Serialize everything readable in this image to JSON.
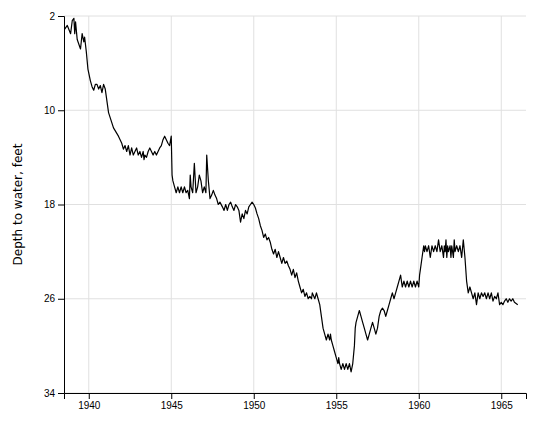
{
  "chart_data": {
    "type": "line",
    "ylabel": "Depth to water, feet",
    "xlim": [
      1938.5,
      1966.5
    ],
    "ylim": [
      34,
      2
    ],
    "xticks": [
      1940,
      1945,
      1950,
      1955,
      1960,
      1965
    ],
    "yticks": [
      2,
      10,
      18,
      26,
      34
    ],
    "grid": true,
    "color": "#000000",
    "x": [
      1938.5,
      1938.7,
      1938.9,
      1939.0,
      1939.1,
      1939.15,
      1939.2,
      1939.3,
      1939.5,
      1939.6,
      1939.7,
      1939.75,
      1939.85,
      1939.95,
      1940.1,
      1940.2,
      1940.3,
      1940.4,
      1940.5,
      1940.6,
      1940.7,
      1940.8,
      1940.9,
      1941.0,
      1941.2,
      1941.5,
      1941.8,
      1942.0,
      1942.1,
      1942.2,
      1942.3,
      1942.4,
      1942.5,
      1942.6,
      1942.7,
      1942.8,
      1942.9,
      1943.0,
      1943.1,
      1943.2,
      1943.3,
      1943.35,
      1943.4,
      1943.5,
      1943.6,
      1943.7,
      1943.8,
      1943.9,
      1944.0,
      1944.1,
      1944.2,
      1944.3,
      1944.4,
      1944.5,
      1944.6,
      1944.7,
      1944.8,
      1944.9,
      1945.0,
      1945.05,
      1945.1,
      1945.2,
      1945.3,
      1945.4,
      1945.5,
      1945.6,
      1945.7,
      1945.8,
      1945.9,
      1946.0,
      1946.1,
      1946.15,
      1946.2,
      1946.3,
      1946.4,
      1946.5,
      1946.6,
      1946.7,
      1946.8,
      1946.9,
      1947.0,
      1947.1,
      1947.15,
      1947.25,
      1947.35,
      1947.45,
      1947.55,
      1947.65,
      1947.75,
      1947.85,
      1947.95,
      1948.1,
      1948.2,
      1948.3,
      1948.4,
      1948.5,
      1948.6,
      1948.7,
      1948.8,
      1948.9,
      1949.0,
      1949.1,
      1949.2,
      1949.3,
      1949.4,
      1949.5,
      1949.6,
      1949.7,
      1949.8,
      1949.9,
      1950.0,
      1950.1,
      1950.2,
      1950.3,
      1950.35,
      1950.4,
      1950.5,
      1950.6,
      1950.7,
      1950.8,
      1950.9,
      1951.0,
      1951.1,
      1951.2,
      1951.3,
      1951.4,
      1951.5,
      1951.6,
      1951.7,
      1951.8,
      1951.9,
      1952.0,
      1952.1,
      1952.2,
      1952.3,
      1952.4,
      1952.5,
      1952.6,
      1952.7,
      1952.8,
      1952.9,
      1953.0,
      1953.1,
      1953.2,
      1953.3,
      1953.4,
      1953.5,
      1953.55,
      1953.7,
      1953.8,
      1953.9,
      1954.0,
      1954.1,
      1954.2,
      1954.3,
      1954.4,
      1954.5,
      1954.6,
      1954.65,
      1954.7,
      1954.8,
      1954.9,
      1955.0,
      1955.1,
      1955.15,
      1955.2,
      1955.3,
      1955.4,
      1955.5,
      1955.6,
      1955.7,
      1955.8,
      1955.9,
      1956.0,
      1956.1,
      1956.15,
      1956.2,
      1956.3,
      1956.4,
      1956.5,
      1956.6,
      1956.7,
      1956.8,
      1956.9,
      1957.0,
      1957.1,
      1957.2,
      1957.3,
      1957.4,
      1957.5,
      1957.6,
      1957.7,
      1957.8,
      1957.9,
      1958.0,
      1958.1,
      1958.2,
      1958.3,
      1958.4,
      1958.5,
      1958.6,
      1958.7,
      1958.8,
      1958.9,
      1959.0,
      1959.1,
      1959.2,
      1959.3,
      1959.4,
      1959.5,
      1959.6,
      1959.7,
      1959.8,
      1959.9,
      1960.0,
      1960.05,
      1960.1,
      1960.2,
      1960.3,
      1960.35,
      1960.4,
      1960.5,
      1960.6,
      1960.7,
      1960.8,
      1960.9,
      1961.0,
      1961.1,
      1961.2,
      1961.3,
      1961.4,
      1961.5,
      1961.55,
      1961.6,
      1961.65,
      1961.7,
      1961.75,
      1961.8,
      1961.9,
      1961.95,
      1962.0,
      1962.1,
      1962.15,
      1962.2,
      1962.3,
      1962.4,
      1962.5,
      1962.6,
      1962.7,
      1962.8,
      1962.9,
      1963.0,
      1963.1,
      1963.2,
      1963.3,
      1963.4,
      1963.5,
      1963.6,
      1963.7,
      1963.8,
      1963.9,
      1964.0,
      1964.1,
      1964.2,
      1964.3,
      1964.4,
      1964.5,
      1964.6,
      1964.7,
      1964.8,
      1964.85,
      1964.9,
      1965.0,
      1965.1,
      1965.2,
      1965.3,
      1965.4,
      1965.5,
      1965.6,
      1965.7,
      1965.8,
      1966.0
    ],
    "values": [
      3.2,
      2.8,
      3.5,
      2.4,
      2.2,
      3.5,
      2.5,
      4.0,
      4.8,
      3.5,
      4.2,
      3.8,
      5.0,
      6.5,
      7.5,
      8.0,
      8.3,
      7.8,
      7.8,
      8.2,
      7.9,
      8.5,
      7.8,
      8.2,
      10.2,
      11.5,
      12.2,
      12.8,
      13.3,
      13.0,
      13.5,
      13.0,
      13.8,
      13.2,
      13.8,
      13.5,
      13.2,
      13.8,
      13.5,
      14.0,
      13.5,
      14.2,
      13.8,
      14.0,
      13.5,
      13.2,
      13.5,
      13.8,
      13.5,
      13.8,
      13.5,
      13.2,
      13.0,
      12.5,
      12.2,
      12.5,
      12.8,
      13.0,
      12.2,
      15.5,
      16.0,
      16.5,
      17.0,
      16.5,
      17.0,
      16.5,
      17.0,
      16.5,
      17.0,
      16.8,
      17.5,
      15.5,
      16.5,
      17.0,
      14.5,
      17.0,
      16.5,
      15.5,
      16.0,
      17.0,
      16.5,
      17.0,
      13.8,
      16.0,
      17.5,
      17.2,
      16.8,
      17.2,
      17.5,
      18.0,
      17.8,
      18.2,
      18.5,
      18.0,
      18.5,
      18.0,
      17.8,
      18.2,
      18.5,
      18.0,
      18.2,
      18.5,
      19.5,
      18.8,
      19.2,
      18.5,
      18.8,
      18.2,
      18.0,
      17.8,
      18.0,
      18.3,
      18.8,
      19.2,
      19.5,
      19.8,
      20.2,
      20.8,
      20.5,
      21.0,
      20.8,
      21.2,
      21.8,
      22.2,
      21.8,
      22.5,
      22.0,
      22.5,
      23.0,
      22.5,
      23.0,
      22.8,
      23.2,
      23.5,
      24.0,
      23.5,
      24.2,
      23.8,
      24.5,
      25.0,
      25.5,
      25.2,
      25.8,
      25.5,
      26.0,
      25.8,
      26.0,
      25.5,
      26.0,
      25.5,
      26.0,
      26.5,
      27.5,
      28.5,
      29.0,
      29.5,
      29.0,
      29.5,
      29.0,
      29.5,
      30.0,
      30.5,
      31.0,
      31.5,
      31.0,
      31.5,
      32.0,
      31.5,
      32.0,
      31.5,
      32.0,
      31.5,
      32.2,
      31.5,
      30.0,
      28.5,
      28.0,
      27.5,
      27.0,
      27.5,
      28.0,
      28.5,
      29.0,
      29.5,
      29.0,
      28.5,
      28.0,
      28.5,
      29.0,
      28.5,
      27.5,
      27.0,
      26.8,
      27.0,
      27.5,
      27.0,
      26.5,
      26.0,
      25.5,
      26.0,
      25.5,
      25.0,
      24.5,
      24.0,
      25.0,
      24.5,
      25.0,
      24.5,
      25.0,
      24.5,
      25.0,
      24.5,
      25.0,
      24.5,
      25.0,
      24.0,
      23.5,
      22.5,
      21.5,
      22.0,
      21.5,
      22.0,
      21.5,
      22.5,
      21.5,
      22.0,
      21.5,
      22.0,
      21.0,
      22.0,
      21.5,
      22.5,
      21.5,
      22.0,
      21.0,
      22.5,
      21.5,
      22.0,
      21.5,
      22.5,
      21.5,
      22.5,
      21.0,
      22.0,
      21.5,
      22.0,
      21.5,
      22.5,
      21.0,
      22.5,
      24.5,
      25.5,
      25.0,
      25.5,
      26.0,
      25.5,
      26.5,
      25.5,
      26.0,
      25.5,
      25.8,
      25.5,
      26.0,
      25.5,
      26.0,
      25.5,
      26.2,
      25.8,
      26.0,
      25.5,
      26.0,
      26.5,
      26.3,
      26.5,
      26.2,
      26.0,
      26.3,
      26.0,
      26.2,
      26.0,
      26.3,
      26.5
    ]
  }
}
